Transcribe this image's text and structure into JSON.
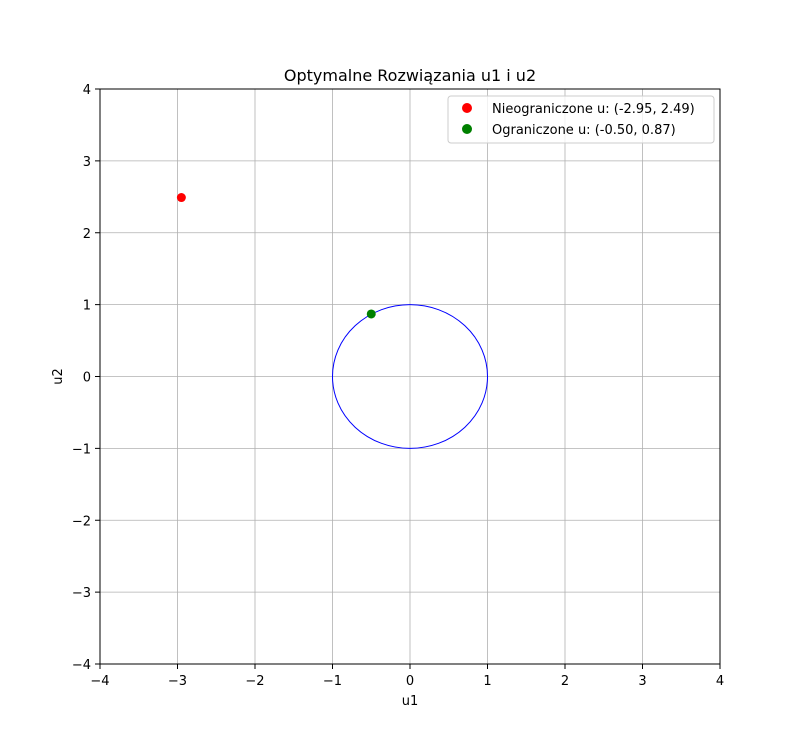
{
  "chart_data": {
    "type": "scatter",
    "title": "Optymalne Rozwiązania u1 i u2",
    "xlabel": "u1",
    "ylabel": "u2",
    "xlim": [
      -4,
      4
    ],
    "ylim": [
      -4,
      4
    ],
    "xticks": [
      -4,
      -3,
      -2,
      -1,
      0,
      1,
      2,
      3,
      4
    ],
    "yticks": [
      -4,
      -3,
      -2,
      -1,
      0,
      1,
      2,
      3,
      4
    ],
    "xtick_labels": [
      "−4",
      "−3",
      "−2",
      "−1",
      "0",
      "1",
      "2",
      "3",
      "4"
    ],
    "ytick_labels": [
      "−4",
      "−3",
      "−2",
      "−1",
      "0",
      "1",
      "2",
      "3",
      "4"
    ],
    "grid": true,
    "legend_position": "top-right",
    "series": [
      {
        "name": "Nieograniczone u: (-2.95, 2.49)",
        "color": "#ff0000",
        "points": [
          [
            -2.95,
            2.49
          ]
        ]
      },
      {
        "name": "Ograniczone u: (-0.50, 0.87)",
        "color": "#008000",
        "points": [
          [
            -0.5,
            0.87
          ]
        ]
      }
    ],
    "constraint_circle": {
      "center": [
        0,
        0
      ],
      "radius": 1,
      "color": "#0000ff"
    }
  }
}
